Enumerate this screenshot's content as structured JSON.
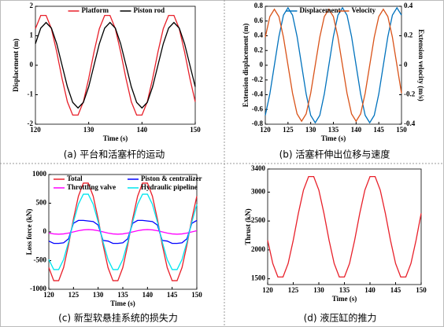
{
  "chart_data": [
    {
      "type": "line",
      "caption": "(a)  平台和活塞杆的运动",
      "xlabel": "Time (s)",
      "ylabel": "Displacement (m)",
      "x": [
        120,
        121,
        122,
        123,
        124,
        125,
        126,
        127,
        128,
        129,
        130,
        131,
        132,
        133,
        134,
        135,
        136,
        137,
        138,
        139,
        140,
        141,
        142,
        143,
        144,
        145,
        146,
        147,
        148,
        149,
        150
      ],
      "xlim": [
        120,
        150
      ],
      "xticks": [
        120,
        130,
        140,
        150
      ],
      "ylim": [
        -2,
        2
      ],
      "yticks": [
        -2,
        -1,
        0,
        1,
        2
      ],
      "legend": "upper center",
      "series": [
        {
          "name": "Platform",
          "color": "#e8202a",
          "values": [
            1.24,
            1.69,
            1.69,
            1.24,
            0.45,
            -0.45,
            -1.24,
            -1.69,
            -1.69,
            -1.24,
            -0.45,
            0.45,
            1.24,
            1.69,
            1.69,
            1.24,
            0.45,
            -0.45,
            -1.24,
            -1.69,
            -1.69,
            -1.24,
            -0.45,
            0.45,
            1.24,
            1.69,
            1.69,
            1.24,
            0.45,
            -0.45,
            -1.24
          ]
        },
        {
          "name": "Piston rod",
          "color": "#000000",
          "values": [
            0.73,
            1.26,
            1.45,
            1.26,
            0.73,
            0,
            -0.73,
            -1.26,
            -1.45,
            -1.26,
            -0.73,
            0,
            0.73,
            1.26,
            1.45,
            1.26,
            0.73,
            0,
            -0.73,
            -1.26,
            -1.45,
            -1.26,
            -0.73,
            0,
            0.73,
            1.26,
            1.45,
            1.26,
            0.73,
            0,
            -0.73
          ]
        }
      ]
    },
    {
      "type": "line",
      "caption": "(b)  活塞杆伸出位移与速度",
      "xlabel": "Time (s)",
      "ylabel": "Extension displacement (m)",
      "y2label": "Extension velocity (m/s)",
      "x": [
        120,
        121,
        122,
        123,
        124,
        125,
        126,
        127,
        128,
        129,
        130,
        131,
        132,
        133,
        134,
        135,
        136,
        137,
        138,
        139,
        140,
        141,
        142,
        143,
        144,
        145,
        146,
        147,
        148,
        149,
        150
      ],
      "xlim": [
        120,
        150
      ],
      "xticks": [
        120,
        125,
        130,
        135,
        140,
        145,
        150
      ],
      "ylim": [
        -0.8,
        0.8
      ],
      "yticks": [
        -0.8,
        -0.6,
        -0.4,
        -0.2,
        0,
        0.2,
        0.4,
        0.6,
        0.8
      ],
      "y2lim": [
        -0.4,
        0.4
      ],
      "y2ticks": [
        -0.4,
        -0.2,
        0,
        0.2,
        0.4
      ],
      "legend": "upper center",
      "series": [
        {
          "name": "Displacement",
          "color": "#0072bd",
          "values": [
            -0.68,
            -0.39,
            0,
            0.39,
            0.68,
            0.78,
            0.68,
            0.39,
            0,
            -0.39,
            -0.68,
            -0.78,
            -0.68,
            -0.39,
            0,
            0.39,
            0.68,
            0.78,
            0.68,
            0.39,
            0,
            -0.39,
            -0.68,
            -0.78,
            -0.68,
            -0.39,
            0,
            0.39,
            0.68,
            0.78,
            0.68
          ]
        },
        {
          "name": "Velocity",
          "color": "#d95319",
          "axis": "y2",
          "values": [
            0.19,
            0.33,
            0.38,
            0.33,
            0.19,
            0,
            -0.19,
            -0.33,
            -0.38,
            -0.33,
            -0.19,
            0,
            0.19,
            0.33,
            0.38,
            0.33,
            0.19,
            0,
            -0.19,
            -0.33,
            -0.38,
            -0.33,
            -0.19,
            0,
            0.19,
            0.33,
            0.38,
            0.33,
            0.19,
            0,
            -0.19
          ]
        }
      ]
    },
    {
      "type": "line",
      "caption": "(c)  新型软悬挂系统的损失力",
      "xlabel": "Time (s)",
      "ylabel": "Loss force (kN)",
      "x": [
        120,
        121,
        122,
        123,
        124,
        125,
        126,
        127,
        128,
        129,
        130,
        131,
        132,
        133,
        134,
        135,
        136,
        137,
        138,
        139,
        140,
        141,
        142,
        143,
        144,
        145,
        146,
        147,
        148,
        149,
        150
      ],
      "xlim": [
        120,
        150
      ],
      "xticks": [
        120,
        125,
        130,
        135,
        140,
        145,
        150
      ],
      "ylim": [
        -1000,
        1000
      ],
      "yticks": [
        -1000,
        -500,
        0,
        500,
        1000
      ],
      "legend": "upper center",
      "series": [
        {
          "name": "Total",
          "color": "#e8202a",
          "values": [
            -622,
            -850,
            -850,
            -622,
            -228,
            228,
            622,
            850,
            850,
            622,
            228,
            -228,
            -622,
            -850,
            -850,
            -622,
            -228,
            228,
            622,
            850,
            850,
            622,
            228,
            -228,
            -622,
            -850,
            -850,
            -622,
            -228,
            228,
            622
          ]
        },
        {
          "name": "Piston & centralizer",
          "color": "#0000ff",
          "values": [
            -160,
            -200,
            -200,
            -190,
            -120,
            150,
            200,
            200,
            190,
            180,
            120,
            -150,
            -160,
            -200,
            -200,
            -190,
            -120,
            150,
            200,
            200,
            190,
            180,
            120,
            -150,
            -160,
            -200,
            -200,
            -190,
            -120,
            150,
            200
          ]
        },
        {
          "name": "Throttling valve",
          "color": "#ff00ff",
          "values": [
            -20,
            -35,
            -40,
            -35,
            -20,
            0,
            20,
            35,
            40,
            35,
            20,
            0,
            -20,
            -35,
            -40,
            -35,
            -20,
            0,
            20,
            35,
            40,
            35,
            20,
            0,
            -20,
            -35,
            -40,
            -35,
            -20,
            0,
            20
          ]
        },
        {
          "name": "Hydraulic pipeline",
          "color": "#00e5ee",
          "values": [
            -481,
            -657,
            -657,
            -481,
            -176,
            176,
            481,
            657,
            657,
            481,
            176,
            -176,
            -481,
            -657,
            -657,
            -481,
            -176,
            176,
            481,
            657,
            657,
            481,
            176,
            -176,
            -481,
            -657,
            -657,
            -481,
            -176,
            176,
            481
          ]
        }
      ]
    },
    {
      "type": "line",
      "caption": "(d)  液压缸的推力",
      "xlabel": "Time (s)",
      "ylabel": "Thrust (kN)",
      "x": [
        120,
        121,
        122,
        123,
        124,
        125,
        126,
        127,
        128,
        129,
        130,
        131,
        132,
        133,
        134,
        135,
        136,
        137,
        138,
        139,
        140,
        141,
        142,
        143,
        144,
        145,
        146,
        147,
        148,
        149,
        150
      ],
      "xlim": [
        120,
        150
      ],
      "xticks": [
        120,
        125,
        130,
        135,
        140,
        145,
        150
      ],
      "ylim": [
        1400,
        3400
      ],
      "yticks": [
        1500,
        2000,
        2500,
        3000,
        3400
      ],
      "series": [
        {
          "color": "#e8202a",
          "values": [
            2167,
            1764,
            1531,
            1531,
            1764,
            2167,
            2633,
            3036,
            3269,
            3269,
            3036,
            2633,
            2167,
            1764,
            1531,
            1531,
            1764,
            2167,
            2633,
            3036,
            3269,
            3269,
            3036,
            2633,
            2167,
            1764,
            1531,
            1531,
            1764,
            2167,
            2633
          ]
        }
      ]
    }
  ]
}
